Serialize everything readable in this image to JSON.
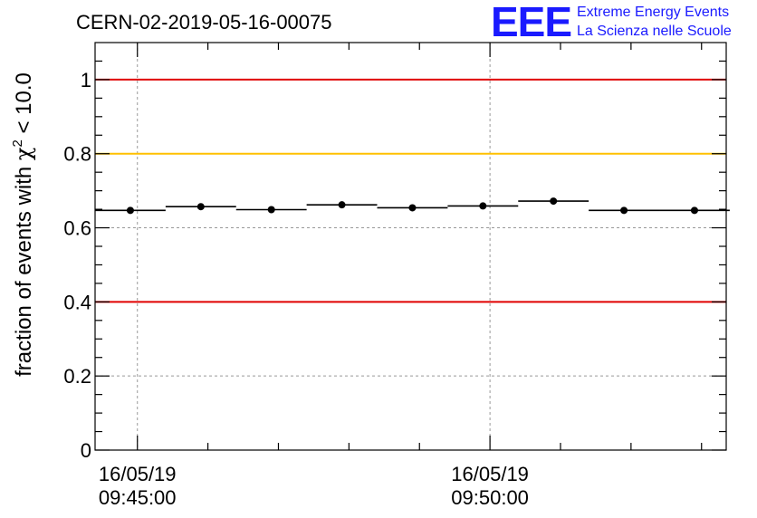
{
  "title": "CERN-02-2019-05-16-00075",
  "logo": {
    "mark": "EEE",
    "line1": "Extreme Energy Events",
    "line2": "La Scienza nelle Scuole"
  },
  "colors": {
    "red_line": "#e00000",
    "yellow_line": "#ffc000",
    "grid": "#999999",
    "logo": "#1a1aff"
  },
  "chart_data": {
    "type": "scatter",
    "ylabel_main": "fraction of events with ",
    "ylabel_chi": "χ",
    "ylabel_sup": "2",
    "ylabel_tail": " < 10.0",
    "ylim": [
      0,
      1.1
    ],
    "xlim_minutes": [
      0,
      8.95
    ],
    "grid": true,
    "x_ticks": [
      {
        "minute": 0.6,
        "date": "16/05/19",
        "time": "09:45:00"
      },
      {
        "minute": 5.6,
        "date": "16/05/19",
        "time": "09:50:00"
      }
    ],
    "y_ticks": [
      {
        "value": 0,
        "label": "0"
      },
      {
        "value": 0.2,
        "label": "0.2"
      },
      {
        "value": 0.4,
        "label": "0.4"
      },
      {
        "value": 0.6,
        "label": "0.6"
      },
      {
        "value": 0.8,
        "label": "0.8"
      },
      {
        "value": 1.0,
        "label": "1"
      }
    ],
    "reference_lines": [
      {
        "value": 1.0,
        "color": "#e00000"
      },
      {
        "value": 0.8,
        "color": "#ffc000"
      },
      {
        "value": 0.4,
        "color": "#e00000"
      }
    ],
    "points": [
      {
        "x0": 0,
        "x1": 1,
        "y": 0.647
      },
      {
        "x0": 1,
        "x1": 2,
        "y": 0.657
      },
      {
        "x0": 2,
        "x1": 3,
        "y": 0.649
      },
      {
        "x0": 3,
        "x1": 4,
        "y": 0.662
      },
      {
        "x0": 4,
        "x1": 5,
        "y": 0.654
      },
      {
        "x0": 5,
        "x1": 6,
        "y": 0.659
      },
      {
        "x0": 6,
        "x1": 7,
        "y": 0.672
      },
      {
        "x0": 7,
        "x1": 8,
        "y": 0.647
      },
      {
        "x0": 8,
        "x1": 9,
        "y": 0.647
      }
    ]
  }
}
